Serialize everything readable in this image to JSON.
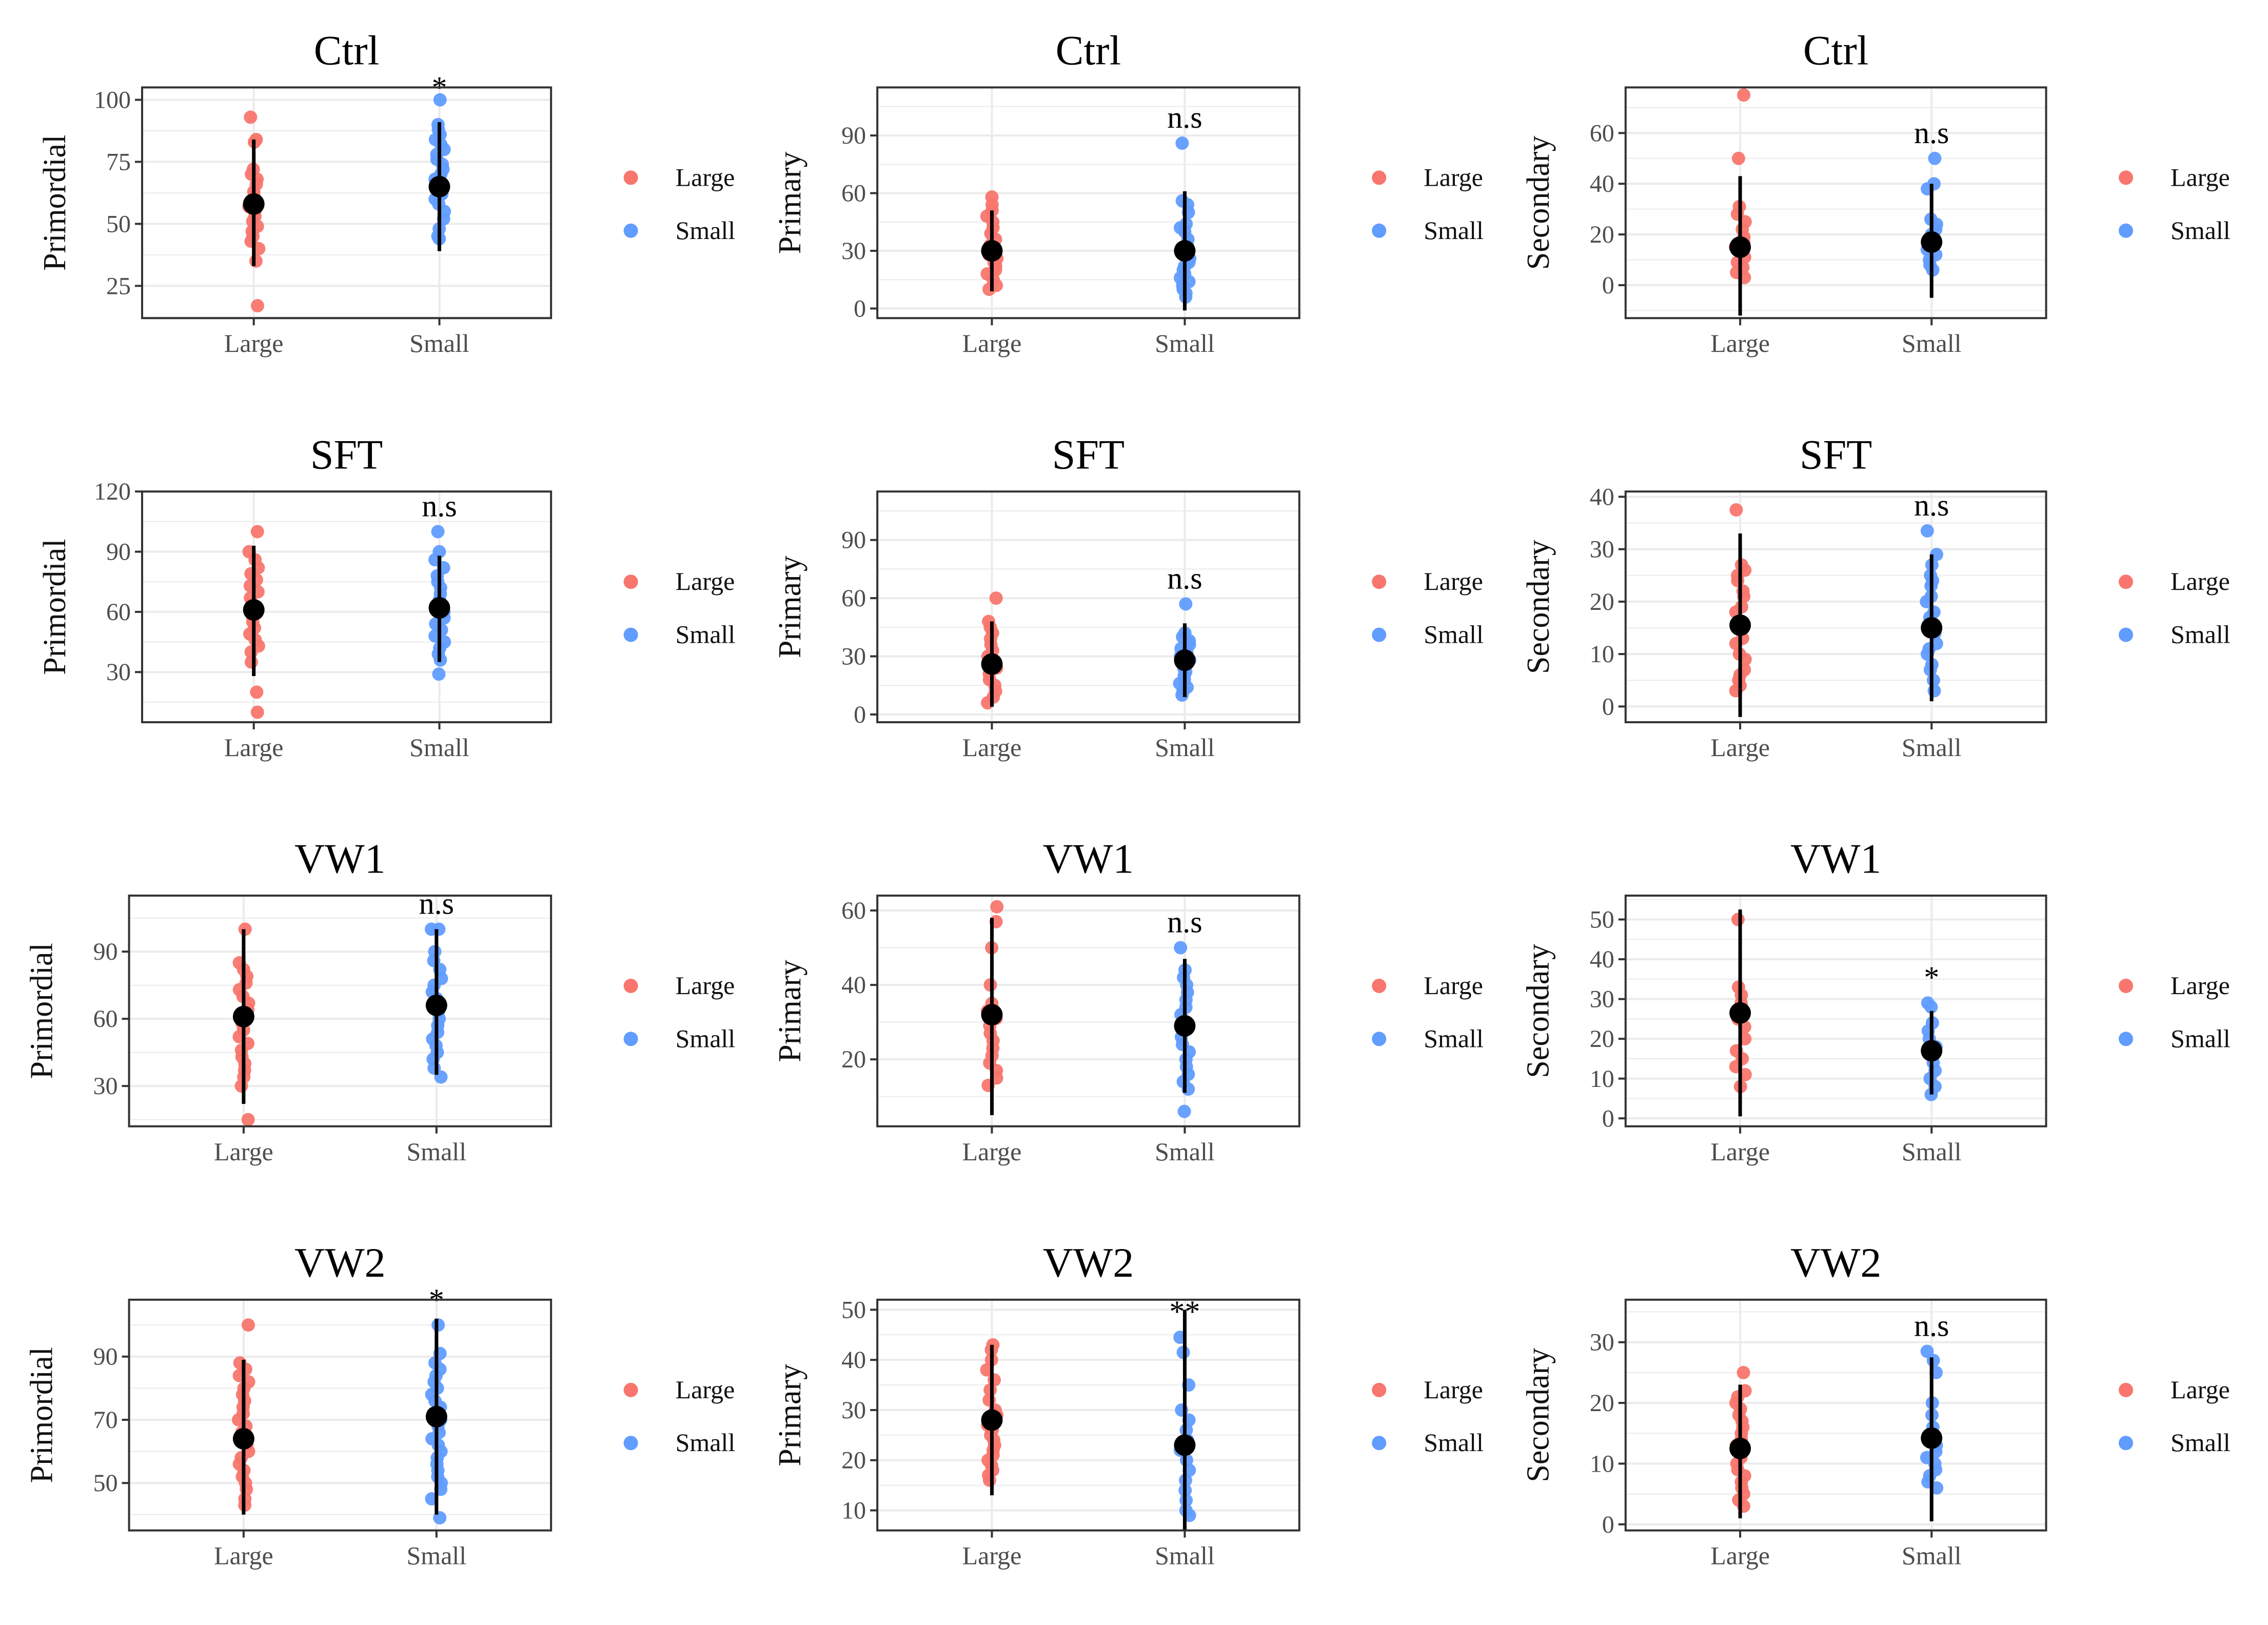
{
  "colors": {
    "large": "#F8766D",
    "small": "#619CFF",
    "summary": "#000000",
    "grid": "#EBEBEB",
    "border": "#333333"
  },
  "chart_data": [
    {
      "type": "scatter",
      "title": "Ctrl",
      "ylabel": "Primordial",
      "categories": [
        "Large",
        "Small"
      ],
      "ylim": [
        12,
        105
      ],
      "yticks": [
        25,
        50,
        75,
        100
      ],
      "significance": "*",
      "legend": [
        "Large",
        "Small"
      ],
      "series": [
        {
          "name": "Large",
          "points": [
            93,
            84,
            83,
            72,
            70,
            68,
            66,
            63,
            61,
            59,
            57,
            55,
            53,
            51,
            49,
            47,
            45,
            43,
            40,
            35,
            17
          ],
          "mean": 58,
          "range": [
            33,
            84
          ]
        },
        {
          "name": "Small",
          "points": [
            100,
            90,
            88,
            86,
            84,
            82,
            80,
            78,
            76,
            74,
            72,
            70,
            68,
            66,
            64,
            62,
            60,
            58,
            55,
            52,
            48,
            45,
            44
          ],
          "mean": 65,
          "range": [
            39,
            91
          ]
        }
      ]
    },
    {
      "type": "scatter",
      "title": "Ctrl",
      "ylabel": "Primary",
      "categories": [
        "Large",
        "Small"
      ],
      "ylim": [
        -5,
        115
      ],
      "yticks": [
        0,
        30,
        60,
        90
      ],
      "significance": "n.s",
      "legend": [
        "Large",
        "Small"
      ],
      "series": [
        {
          "name": "Large",
          "points": [
            58,
            54,
            51,
            48,
            45,
            42,
            39,
            36,
            33,
            30,
            28,
            26,
            24,
            22,
            20,
            18,
            15,
            12,
            10
          ],
          "mean": 30,
          "range": [
            9,
            51
          ]
        },
        {
          "name": "Small",
          "points": [
            86,
            56,
            54,
            50,
            44,
            42,
            40,
            36,
            33,
            30,
            28,
            26,
            24,
            22,
            20,
            18,
            16,
            14,
            12,
            10,
            8,
            6
          ],
          "mean": 30,
          "range": [
            -1,
            61
          ]
        }
      ]
    },
    {
      "type": "scatter",
      "title": "Ctrl",
      "ylabel": "Secondary",
      "categories": [
        "Large",
        "Small"
      ],
      "ylim": [
        -13,
        78
      ],
      "yticks": [
        0,
        20,
        40,
        60
      ],
      "significance": "n.s",
      "legend": [
        "Large",
        "Small"
      ],
      "series": [
        {
          "name": "Large",
          "points": [
            75,
            50,
            31,
            28,
            25,
            22,
            19,
            17,
            15,
            13,
            11,
            9,
            7,
            5,
            3
          ],
          "mean": 15,
          "range": [
            -12,
            43
          ]
        },
        {
          "name": "Small",
          "points": [
            50,
            40,
            38,
            26,
            24,
            22,
            20,
            18,
            16,
            14,
            12,
            10,
            8,
            6
          ],
          "mean": 17,
          "range": [
            -5,
            40
          ]
        }
      ]
    },
    {
      "type": "scatter",
      "title": "SFT",
      "ylabel": "Primordial",
      "categories": [
        "Large",
        "Small"
      ],
      "ylim": [
        5,
        120
      ],
      "yticks": [
        30,
        60,
        90,
        120
      ],
      "significance": "n.s",
      "legend": [
        "Large",
        "Small"
      ],
      "series": [
        {
          "name": "Large",
          "points": [
            100,
            90,
            86,
            82,
            79,
            76,
            73,
            70,
            67,
            64,
            61,
            58,
            55,
            52,
            49,
            46,
            43,
            40,
            35,
            20,
            10
          ],
          "mean": 61,
          "range": [
            28,
            93
          ]
        },
        {
          "name": "Small",
          "points": [
            100,
            90,
            86,
            82,
            78,
            75,
            72,
            69,
            66,
            63,
            60,
            57,
            54,
            51,
            48,
            45,
            42,
            39,
            36,
            29
          ],
          "mean": 62,
          "range": [
            35,
            88
          ]
        }
      ]
    },
    {
      "type": "scatter",
      "title": "SFT",
      "ylabel": "Primary",
      "categories": [
        "Large",
        "Small"
      ],
      "ylim": [
        -4,
        115
      ],
      "yticks": [
        0,
        30,
        60,
        90
      ],
      "significance": "n.s",
      "legend": [
        "Large",
        "Small"
      ],
      "series": [
        {
          "name": "Large",
          "points": [
            60,
            48,
            45,
            42,
            39,
            36,
            33,
            30,
            27,
            24,
            21,
            18,
            15,
            12,
            9,
            6
          ],
          "mean": 26,
          "range": [
            4,
            48
          ]
        },
        {
          "name": "Small",
          "points": [
            57,
            42,
            40,
            38,
            36,
            34,
            32,
            30,
            28,
            26,
            24,
            22,
            20,
            18,
            16,
            14,
            12,
            10
          ],
          "mean": 28,
          "range": [
            9,
            47
          ]
        }
      ]
    },
    {
      "type": "scatter",
      "title": "SFT",
      "ylabel": "Secondary",
      "categories": [
        "Large",
        "Small"
      ],
      "ylim": [
        -3,
        41
      ],
      "yticks": [
        0,
        10,
        20,
        30,
        40
      ],
      "significance": "n.s",
      "legend": [
        "Large",
        "Small"
      ],
      "series": [
        {
          "name": "Large",
          "points": [
            37.5,
            27,
            26,
            25,
            24,
            22,
            21,
            19,
            18,
            16,
            15,
            13,
            12,
            10,
            9,
            7,
            6,
            5,
            4,
            3
          ],
          "mean": 15.5,
          "range": [
            -2,
            33
          ]
        },
        {
          "name": "Small",
          "points": [
            33.5,
            29,
            27,
            25,
            24,
            23,
            21,
            20,
            18,
            17,
            15,
            14,
            12,
            11,
            10,
            8,
            7,
            5,
            3
          ],
          "mean": 15,
          "range": [
            1,
            29
          ]
        }
      ]
    },
    {
      "type": "scatter",
      "title": "VW1",
      "ylabel": "Primordial",
      "categories": [
        "Large",
        "Small"
      ],
      "ylim": [
        12,
        115
      ],
      "yticks": [
        30,
        60,
        90
      ],
      "significance": "n.s",
      "legend": [
        "Large",
        "Small"
      ],
      "series": [
        {
          "name": "Large",
          "points": [
            100,
            85,
            82,
            79,
            76,
            73,
            70,
            67,
            64,
            61,
            58,
            55,
            52,
            49,
            46,
            43,
            40,
            37,
            34,
            30,
            15
          ],
          "mean": 61,
          "range": [
            22,
            100
          ]
        },
        {
          "name": "Small",
          "points": [
            100,
            100,
            90,
            86,
            82,
            78,
            75,
            72,
            69,
            66,
            63,
            60,
            57,
            54,
            51,
            48,
            45,
            42,
            38,
            34
          ],
          "mean": 66,
          "range": [
            35,
            100
          ]
        }
      ]
    },
    {
      "type": "scatter",
      "title": "VW1",
      "ylabel": "Primary",
      "categories": [
        "Large",
        "Small"
      ],
      "ylim": [
        2,
        64
      ],
      "yticks": [
        20,
        40,
        60
      ],
      "significance": "n.s",
      "legend": [
        "Large",
        "Small"
      ],
      "series": [
        {
          "name": "Large",
          "points": [
            61,
            57,
            50,
            40,
            35,
            33,
            31,
            29,
            27,
            25,
            23,
            21,
            19,
            17,
            15,
            13
          ],
          "mean": 32,
          "range": [
            5,
            58
          ]
        },
        {
          "name": "Small",
          "points": [
            50,
            44,
            42,
            40,
            38,
            36,
            34,
            32,
            30,
            28,
            26,
            24,
            22,
            20,
            18,
            16,
            14,
            12,
            6
          ],
          "mean": 29,
          "range": [
            11,
            47
          ]
        }
      ]
    },
    {
      "type": "scatter",
      "title": "VW1",
      "ylabel": "Secondary",
      "categories": [
        "Large",
        "Small"
      ],
      "ylim": [
        -2,
        56
      ],
      "yticks": [
        0,
        10,
        20,
        30,
        40,
        50
      ],
      "significance": "*",
      "legend": [
        "Large",
        "Small"
      ],
      "series": [
        {
          "name": "Large",
          "points": [
            50,
            33,
            31,
            29,
            27,
            25,
            23,
            20,
            17,
            15,
            13,
            11,
            8
          ],
          "mean": 26.5,
          "range": [
            0.5,
            52.5
          ]
        },
        {
          "name": "Small",
          "points": [
            29,
            28,
            24,
            22,
            20,
            18,
            16,
            14,
            12,
            10,
            8,
            6
          ],
          "mean": 17,
          "range": [
            6,
            27
          ]
        }
      ]
    },
    {
      "type": "scatter",
      "title": "VW2",
      "ylabel": "Primordial",
      "categories": [
        "Large",
        "Small"
      ],
      "ylim": [
        35,
        108
      ],
      "yticks": [
        50,
        70,
        90
      ],
      "significance": "*",
      "legend": [
        "Large",
        "Small"
      ],
      "series": [
        {
          "name": "Large",
          "points": [
            100,
            88,
            86,
            84,
            82,
            80,
            78,
            76,
            74,
            72,
            70,
            68,
            66,
            64,
            62,
            60,
            58,
            56,
            54,
            52,
            50,
            48,
            45,
            43
          ],
          "mean": 64,
          "range": [
            40,
            89
          ]
        },
        {
          "name": "Small",
          "points": [
            100,
            91,
            88,
            86,
            84,
            82,
            80,
            78,
            76,
            74,
            72,
            70,
            68,
            66,
            64,
            62,
            60,
            58,
            56,
            54,
            52,
            50,
            48,
            45,
            39
          ],
          "mean": 71,
          "range": [
            40,
            102
          ]
        }
      ]
    },
    {
      "type": "scatter",
      "title": "VW2",
      "ylabel": "Primary",
      "categories": [
        "Large",
        "Small"
      ],
      "ylim": [
        6,
        52
      ],
      "yticks": [
        10,
        20,
        30,
        40,
        50
      ],
      "significance": "**",
      "legend": [
        "Large",
        "Small"
      ],
      "series": [
        {
          "name": "Large",
          "points": [
            43,
            42,
            40,
            38,
            36,
            34,
            32,
            30,
            29,
            28,
            27,
            26,
            25,
            24,
            23,
            22,
            21,
            20,
            19,
            18,
            17,
            16
          ],
          "mean": 28,
          "range": [
            13,
            43
          ]
        },
        {
          "name": "Small",
          "points": [
            44.5,
            41.5,
            35,
            30,
            28,
            26,
            24,
            22,
            20,
            18,
            16,
            14,
            12,
            10,
            9
          ],
          "mean": 23,
          "range": [
            6,
            50
          ]
        }
      ]
    },
    {
      "type": "scatter",
      "title": "VW2",
      "ylabel": "Secondary",
      "categories": [
        "Large",
        "Small"
      ],
      "ylim": [
        -1,
        37
      ],
      "yticks": [
        0,
        10,
        20,
        30
      ],
      "significance": "n.s",
      "legend": [
        "Large",
        "Small"
      ],
      "series": [
        {
          "name": "Large",
          "points": [
            25,
            22,
            21,
            20,
            19,
            18,
            17,
            16,
            15,
            14,
            13,
            12,
            11,
            10,
            9,
            8,
            7,
            6,
            5,
            4,
            3
          ],
          "mean": 12.5,
          "range": [
            1,
            23
          ]
        },
        {
          "name": "Small",
          "points": [
            28.5,
            27,
            25,
            20,
            18,
            16,
            14,
            13,
            12,
            11,
            10,
            9,
            8,
            7,
            6
          ],
          "mean": 14.2,
          "range": [
            0.5,
            27.5
          ]
        }
      ]
    }
  ]
}
